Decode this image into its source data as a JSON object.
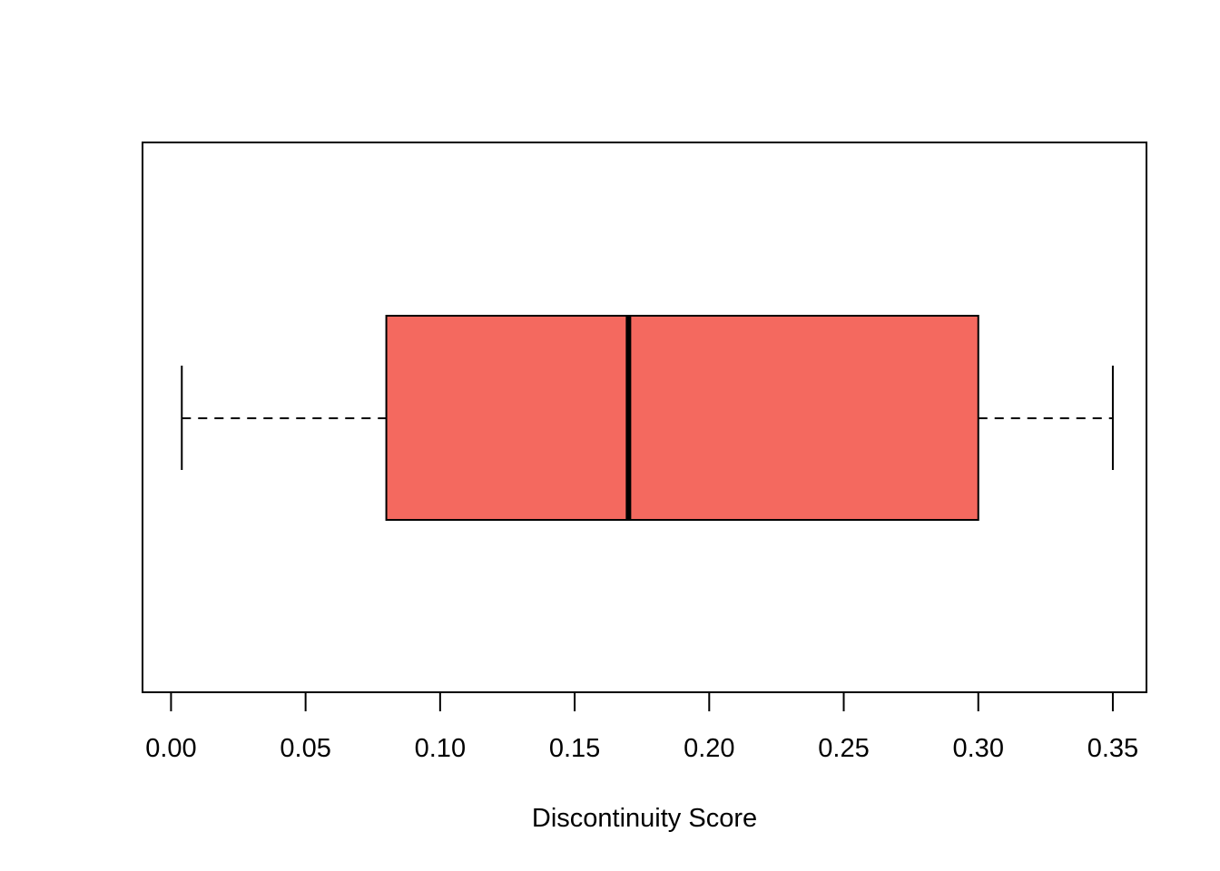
{
  "chart_data": {
    "type": "boxplot",
    "orientation": "horizontal",
    "title": "",
    "xlabel": "Discontinuity Score",
    "ylabel": "",
    "xlim": [
      -0.0106,
      0.3625
    ],
    "x_ticks": [
      0.0,
      0.05,
      0.1,
      0.15,
      0.2,
      0.25,
      0.3,
      0.35
    ],
    "x_tick_labels": [
      "0.00",
      "0.05",
      "0.10",
      "0.15",
      "0.20",
      "0.25",
      "0.30",
      "0.35"
    ],
    "grid": false,
    "legend": "none",
    "box_color": "#F4695F",
    "series": [
      {
        "whisker_low": 0.004,
        "q1": 0.08,
        "median": 0.17,
        "q3": 0.3,
        "whisker_high": 0.35
      }
    ]
  }
}
